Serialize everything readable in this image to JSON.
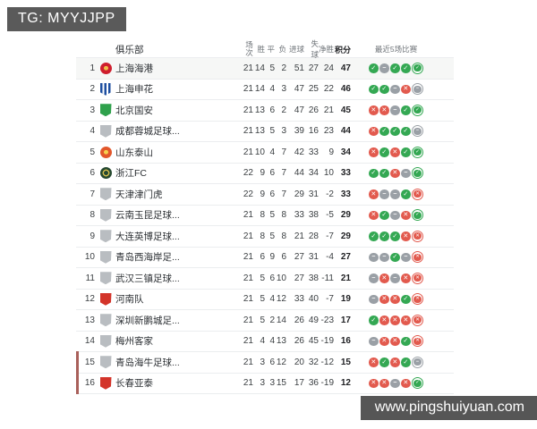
{
  "overlays": {
    "tg_label": "TG: MYYJJPP",
    "site_label": "www.pingshuiyuan.com"
  },
  "table": {
    "columns": {
      "club": "俱乐部",
      "played": "场次",
      "win": "胜",
      "draw": "平",
      "loss": "负",
      "gf": "进球",
      "ga": "失球",
      "gd": "净胜",
      "pts": "积分",
      "form": "最近5场比赛"
    },
    "form_colors": {
      "win": "#34a853",
      "draw": "#9aa0a6",
      "loss": "#e25a4e"
    },
    "relegation_bar_color": "#a9605a",
    "rows": [
      {
        "pos": 1,
        "club": "上海海港",
        "badge": {
          "shape": "circle",
          "style": "dot",
          "color": "#cf1f2e",
          "accent": "#f0c04a"
        },
        "played": 21,
        "win": 14,
        "draw": 5,
        "loss": 2,
        "gf": 51,
        "ga": 27,
        "gd": 24,
        "pts": 47,
        "form": [
          "win",
          "draw",
          "win",
          "win",
          "win"
        ],
        "highlight": true,
        "relegation": false
      },
      {
        "pos": 2,
        "club": "上海申花",
        "badge": {
          "shape": "shield",
          "style": "stripes",
          "color": "#1e4fa0",
          "accent": "#ffffff"
        },
        "played": 21,
        "win": 14,
        "draw": 4,
        "loss": 3,
        "gf": 47,
        "ga": 25,
        "gd": 22,
        "pts": 46,
        "form": [
          "win",
          "win",
          "draw",
          "loss",
          "draw"
        ],
        "highlight": false,
        "relegation": false
      },
      {
        "pos": 3,
        "club": "北京国安",
        "badge": {
          "shape": "shield",
          "style": "solid",
          "color": "#2fa14c",
          "accent": "#2fa14c"
        },
        "played": 21,
        "win": 13,
        "draw": 6,
        "loss": 2,
        "gf": 47,
        "ga": 26,
        "gd": 21,
        "pts": 45,
        "form": [
          "loss",
          "loss",
          "draw",
          "win",
          "win"
        ],
        "highlight": false,
        "relegation": false
      },
      {
        "pos": 4,
        "club": "成都蓉城足球...",
        "badge": {
          "shape": "shield",
          "style": "solid",
          "color": "#b9bdc1",
          "accent": "#b9bdc1"
        },
        "played": 21,
        "win": 13,
        "draw": 5,
        "loss": 3,
        "gf": 39,
        "ga": 16,
        "gd": 23,
        "pts": 44,
        "form": [
          "loss",
          "win",
          "win",
          "win",
          "draw"
        ],
        "highlight": false,
        "relegation": false
      },
      {
        "pos": 5,
        "club": "山东泰山",
        "badge": {
          "shape": "circle",
          "style": "dot",
          "color": "#e2572b",
          "accent": "#f6d14e"
        },
        "played": 21,
        "win": 10,
        "draw": 4,
        "loss": 7,
        "gf": 42,
        "ga": 33,
        "gd": 9,
        "pts": 34,
        "form": [
          "loss",
          "win",
          "loss",
          "win",
          "win"
        ],
        "highlight": false,
        "relegation": false
      },
      {
        "pos": 6,
        "club": "浙江FC",
        "badge": {
          "shape": "circle",
          "style": "ring",
          "color": "#24482f",
          "accent": "#d5bd4e"
        },
        "played": 22,
        "win": 9,
        "draw": 6,
        "loss": 7,
        "gf": 44,
        "ga": 34,
        "gd": 10,
        "pts": 33,
        "form": [
          "win",
          "win",
          "loss",
          "draw",
          "win"
        ],
        "highlight": false,
        "relegation": false
      },
      {
        "pos": 7,
        "club": "天津津门虎",
        "badge": {
          "shape": "shield",
          "style": "solid",
          "color": "#b9bdc1",
          "accent": "#b9bdc1"
        },
        "played": 22,
        "win": 9,
        "draw": 6,
        "loss": 7,
        "gf": 29,
        "ga": 31,
        "gd": -2,
        "pts": 33,
        "form": [
          "loss",
          "draw",
          "draw",
          "win",
          "loss"
        ],
        "highlight": false,
        "relegation": false
      },
      {
        "pos": 8,
        "club": "云南玉昆足球...",
        "badge": {
          "shape": "shield",
          "style": "solid",
          "color": "#b9bdc1",
          "accent": "#b9bdc1"
        },
        "played": 21,
        "win": 8,
        "draw": 5,
        "loss": 8,
        "gf": 33,
        "ga": 38,
        "gd": -5,
        "pts": 29,
        "form": [
          "loss",
          "win",
          "draw",
          "loss",
          "win"
        ],
        "highlight": false,
        "relegation": false
      },
      {
        "pos": 9,
        "club": "大连英博足球...",
        "badge": {
          "shape": "shield",
          "style": "solid",
          "color": "#b9bdc1",
          "accent": "#b9bdc1"
        },
        "played": 21,
        "win": 8,
        "draw": 5,
        "loss": 8,
        "gf": 21,
        "ga": 28,
        "gd": -7,
        "pts": 29,
        "form": [
          "win",
          "win",
          "win",
          "loss",
          "loss"
        ],
        "highlight": false,
        "relegation": false
      },
      {
        "pos": 10,
        "club": "青岛西海岸足...",
        "badge": {
          "shape": "shield",
          "style": "solid",
          "color": "#b9bdc1",
          "accent": "#b9bdc1"
        },
        "played": 21,
        "win": 6,
        "draw": 9,
        "loss": 6,
        "gf": 27,
        "ga": 31,
        "gd": -4,
        "pts": 27,
        "form": [
          "draw",
          "draw",
          "win",
          "draw",
          "loss"
        ],
        "highlight": false,
        "relegation": false
      },
      {
        "pos": 11,
        "club": "武汉三镇足球...",
        "badge": {
          "shape": "shield",
          "style": "solid",
          "color": "#b9bdc1",
          "accent": "#b9bdc1"
        },
        "played": 21,
        "win": 5,
        "draw": 6,
        "loss": 10,
        "gf": 27,
        "ga": 38,
        "gd": -11,
        "pts": 21,
        "form": [
          "draw",
          "loss",
          "draw",
          "loss",
          "loss"
        ],
        "highlight": false,
        "relegation": false
      },
      {
        "pos": 12,
        "club": "河南队",
        "badge": {
          "shape": "shield",
          "style": "solid",
          "color": "#d3342a",
          "accent": "#d3342a"
        },
        "played": 21,
        "win": 5,
        "draw": 4,
        "loss": 12,
        "gf": 33,
        "ga": 40,
        "gd": -7,
        "pts": 19,
        "form": [
          "draw",
          "loss",
          "loss",
          "win",
          "loss"
        ],
        "highlight": false,
        "relegation": false
      },
      {
        "pos": 13,
        "club": "深圳新鹏城足...",
        "badge": {
          "shape": "shield",
          "style": "solid",
          "color": "#b9bdc1",
          "accent": "#b9bdc1"
        },
        "played": 21,
        "win": 5,
        "draw": 2,
        "loss": 14,
        "gf": 26,
        "ga": 49,
        "gd": -23,
        "pts": 17,
        "form": [
          "win",
          "loss",
          "loss",
          "loss",
          "loss"
        ],
        "highlight": false,
        "relegation": false
      },
      {
        "pos": 14,
        "club": "梅州客家",
        "badge": {
          "shape": "shield",
          "style": "solid",
          "color": "#b9bdc1",
          "accent": "#b9bdc1"
        },
        "played": 21,
        "win": 4,
        "draw": 4,
        "loss": 13,
        "gf": 26,
        "ga": 45,
        "gd": -19,
        "pts": 16,
        "form": [
          "draw",
          "loss",
          "loss",
          "win",
          "loss"
        ],
        "highlight": false,
        "relegation": false
      },
      {
        "pos": 15,
        "club": "青岛海牛足球...",
        "badge": {
          "shape": "shield",
          "style": "solid",
          "color": "#b9bdc1",
          "accent": "#b9bdc1"
        },
        "played": 21,
        "win": 3,
        "draw": 6,
        "loss": 12,
        "gf": 20,
        "ga": 32,
        "gd": -12,
        "pts": 15,
        "form": [
          "loss",
          "win",
          "loss",
          "win",
          "draw"
        ],
        "highlight": false,
        "relegation": true
      },
      {
        "pos": 16,
        "club": "长春亚泰",
        "badge": {
          "shape": "shield",
          "style": "solid",
          "color": "#d3342a",
          "accent": "#d3342a"
        },
        "played": 21,
        "win": 3,
        "draw": 3,
        "loss": 15,
        "gf": 17,
        "ga": 36,
        "gd": -19,
        "pts": 12,
        "form": [
          "loss",
          "loss",
          "draw",
          "loss",
          "win"
        ],
        "highlight": false,
        "relegation": true
      }
    ]
  }
}
